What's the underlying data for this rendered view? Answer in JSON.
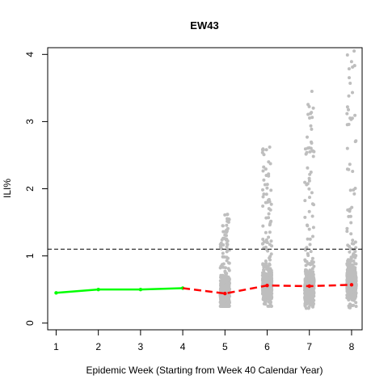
{
  "chart_data": {
    "type": "scatter",
    "title": "EW43",
    "xlabel": "Epidemic Week (Starting from Week 40 Calendar Year)",
    "ylabel": "ILI%",
    "xlim": [
      0.8,
      8.25
    ],
    "ylim": [
      -0.1,
      4.1
    ],
    "x_ticks": [
      1,
      2,
      3,
      4,
      5,
      6,
      7,
      8
    ],
    "y_ticks": [
      0,
      1,
      2,
      3,
      4
    ],
    "threshold": {
      "y": 1.1,
      "style": "dashed",
      "color": "#000000"
    },
    "observed": {
      "color": "#00ff00",
      "x": [
        1,
        2,
        3,
        4
      ],
      "y": [
        0.45,
        0.5,
        0.5,
        0.52
      ]
    },
    "forecast_median": {
      "color": "#ff0000",
      "style": "dashed",
      "x": [
        4,
        5,
        6,
        7,
        8
      ],
      "y": [
        0.52,
        0.44,
        0.56,
        0.55,
        0.57
      ]
    },
    "simulations": {
      "color": "#bebebe",
      "weeks": [
        5,
        6,
        7,
        8
      ],
      "ranges": [
        {
          "week": 5,
          "min": 0.25,
          "max": 1.62
        },
        {
          "week": 6,
          "min": 0.25,
          "max": 2.62
        },
        {
          "week": 7,
          "min": 0.22,
          "max": 3.45
        },
        {
          "week": 8,
          "min": 0.18,
          "max": 4.05
        }
      ]
    }
  }
}
